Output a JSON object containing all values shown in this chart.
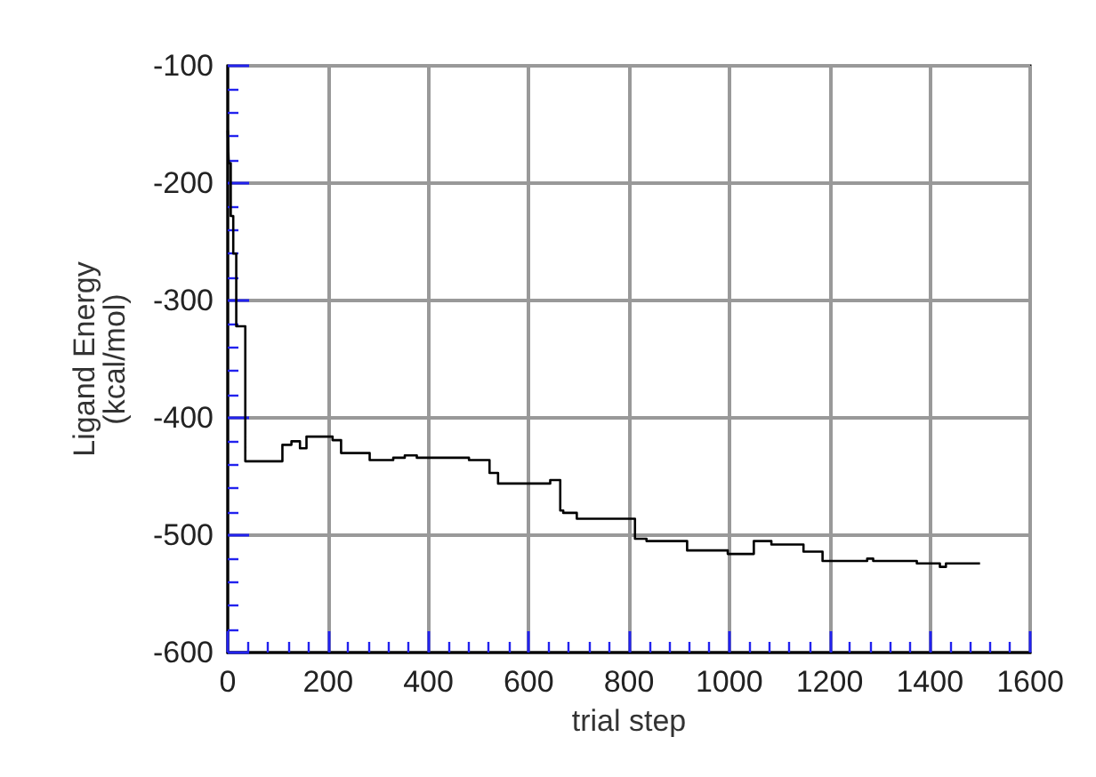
{
  "chart_data": {
    "type": "step",
    "xlabel": "trial step",
    "ylabel": "Ligand Energy\n(kcal/mol)",
    "x": [
      0,
      2,
      6,
      11,
      17,
      35,
      109,
      127,
      144,
      157,
      209,
      226,
      283,
      330,
      353,
      377,
      481,
      522,
      539,
      643,
      663,
      669,
      696,
      812,
      835,
      916,
      997,
      1049,
      1084,
      1148,
      1186,
      1275,
      1287,
      1374,
      1420,
      1432,
      1500
    ],
    "series": [
      {
        "color": "#000000",
        "values": [
          -155,
          -183,
          -228,
          -260,
          -322,
          -437,
          -423,
          -420,
          -426,
          -416,
          -419,
          -430,
          -436,
          -434,
          -432,
          -434,
          -436,
          -447,
          -456,
          -453,
          -479,
          -481,
          -486,
          -503,
          -505,
          -513,
          -516,
          -505,
          -508,
          -514,
          -522,
          -520,
          -522,
          -524,
          -527,
          -524,
          -524
        ]
      }
    ],
    "xlim": [
      0,
      1600
    ],
    "xticks": [
      0,
      200,
      400,
      600,
      800,
      1000,
      1200,
      1400,
      1600
    ],
    "ylim": [
      -600,
      -100
    ],
    "yticks": [
      -600,
      -500,
      -400,
      -300,
      -200,
      -100
    ],
    "grid": true,
    "marker": "none",
    "line_style": "solid"
  }
}
